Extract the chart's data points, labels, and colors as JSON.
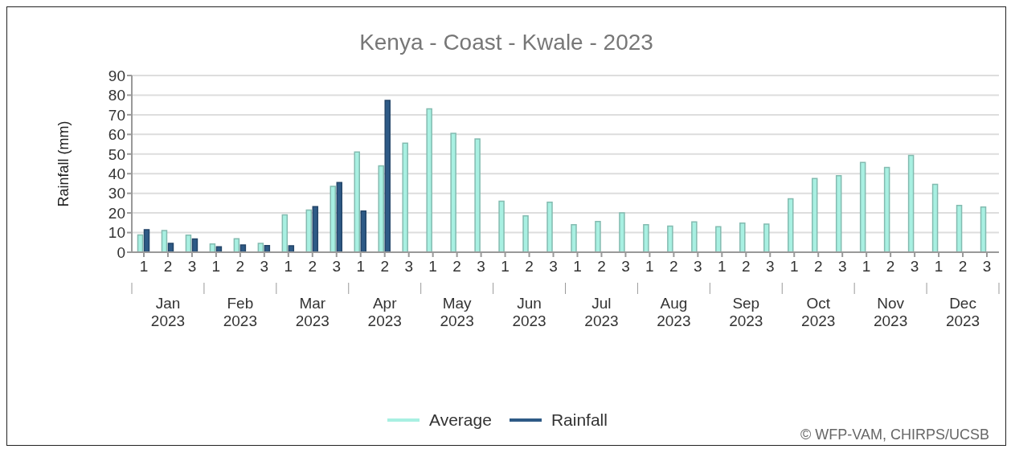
{
  "chart_data": {
    "type": "bar",
    "title": "Kenya - Coast - Kwale - 2023",
    "ylabel": "Rainfall (mm)",
    "categories": [
      "1",
      "2",
      "3",
      "1",
      "2",
      "3",
      "1",
      "2",
      "3",
      "1",
      "2",
      "3",
      "1",
      "2",
      "3",
      "1",
      "2",
      "3",
      "1",
      "2",
      "3",
      "1",
      "2",
      "3",
      "1",
      "2",
      "3",
      "1",
      "2",
      "3",
      "1",
      "2",
      "3",
      "1",
      "2",
      "3"
    ],
    "series": [
      {
        "name": "Average",
        "color": "#a8f0e2",
        "values": [
          8.8,
          11,
          8.7,
          4.2,
          6.9,
          4.5,
          19,
          21.5,
          33.5,
          51,
          44,
          55.5,
          73,
          60.5,
          57.7,
          26,
          18.5,
          25.5,
          14,
          15.6,
          20,
          14,
          13.3,
          15.4,
          13,
          14.8,
          14.3,
          27.2,
          37.5,
          39,
          45.7,
          43.2,
          49.3,
          34.6,
          23.8,
          23
        ]
      },
      {
        "name": "Rainfall",
        "color": "#2e5a86",
        "values": [
          11.5,
          4.5,
          6.8,
          2.8,
          3.7,
          3.4,
          3.3,
          23.2,
          35.5,
          21,
          77.3,
          null,
          null,
          null,
          null,
          null,
          null,
          null,
          null,
          null,
          null,
          null,
          null,
          null,
          null,
          null,
          null,
          null,
          null,
          null,
          null,
          null,
          null,
          null,
          null,
          null
        ]
      }
    ],
    "ylim": [
      0,
      90
    ],
    "yticks": [
      0,
      10,
      20,
      30,
      40,
      50,
      60,
      70,
      80,
      90
    ],
    "grid": "y",
    "legend": "bottom",
    "annotations": [
      "Jan 2023",
      "Feb 2023",
      "Mar 2023",
      "Apr 2023",
      "May 2023",
      "Jun 2023",
      "Jul 2023",
      "Aug 2023",
      "Sep 2023",
      "Oct 2023",
      "Nov 2023",
      "Dec 2023",
      "© WFP-VAM, CHIRPS/UCSB"
    ]
  }
}
